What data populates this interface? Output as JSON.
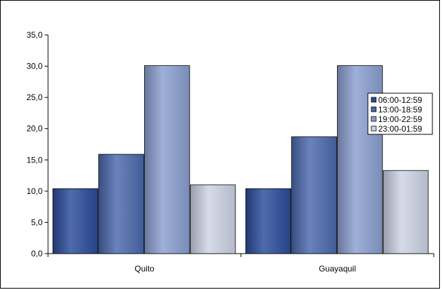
{
  "chart_data": {
    "type": "bar",
    "categories": [
      "Quito",
      "Guayaquil"
    ],
    "series": [
      {
        "name": "06:00-12:59",
        "values": [
          10.4,
          10.4
        ],
        "color": "#2a4a9a"
      },
      {
        "name": "13:00-18:59",
        "values": [
          15.9,
          18.7
        ],
        "color": "#4a68ad"
      },
      {
        "name": "19:00-22:59",
        "values": [
          30.1,
          30.1
        ],
        "color": "#8a9fd0"
      },
      {
        "name": "23:00-01:59",
        "values": [
          11.0,
          13.3
        ],
        "color": "#cdd3e4"
      }
    ],
    "ylim": [
      0,
      35
    ],
    "yticks": [
      "0,0",
      "5,0",
      "10,0",
      "15,0",
      "20,0",
      "25,0",
      "30,0",
      "35,0"
    ],
    "grid": false,
    "legend_position": "right",
    "title": "",
    "xlabel": "",
    "ylabel": ""
  }
}
